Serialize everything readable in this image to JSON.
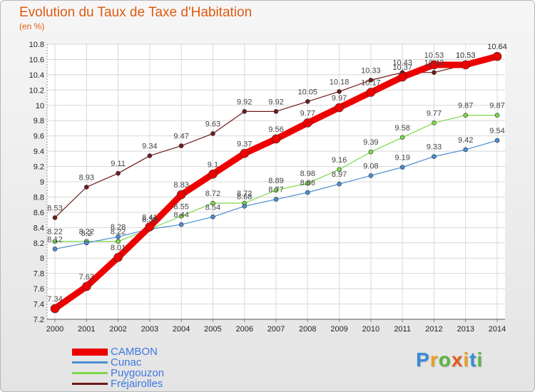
{
  "header": {
    "title": "Evolution du Taux de Taxe d'Habitation",
    "unit": "(en %)"
  },
  "chart_data": {
    "type": "line",
    "title": "Evolution du Taux de Taxe d'Habitation",
    "ylabel": "(en %)",
    "xlabel": "",
    "x": [
      "2000",
      "2001",
      "2002",
      "2003",
      "2004",
      "2005",
      "2006",
      "2007",
      "2008",
      "2009",
      "2010",
      "2011",
      "2012",
      "2013",
      "2014"
    ],
    "ylim": [
      7.2,
      10.8
    ],
    "yticks": [
      7.2,
      7.4,
      7.6,
      7.8,
      8,
      8.2,
      8.4,
      8.6,
      8.8,
      9,
      9.2,
      9.4,
      9.6,
      9.8,
      10,
      10.2,
      10.4,
      10.6,
      10.8
    ],
    "grid": true,
    "legend_position": "bottom-left",
    "series": [
      {
        "name": "CAMBON",
        "color": "#ee0000",
        "values": [
          7.34,
          7.63,
          8.01,
          8.41,
          8.83,
          9.1,
          9.37,
          9.56,
          9.77,
          9.97,
          10.17,
          10.37,
          10.53,
          10.53,
          10.64
        ]
      },
      {
        "name": "Cunac",
        "color": "#4a8ed0",
        "values": [
          8.12,
          8.2,
          8.28,
          8.38,
          8.44,
          8.54,
          8.68,
          8.77,
          8.86,
          8.97,
          9.08,
          9.19,
          9.33,
          9.42,
          9.54
        ]
      },
      {
        "name": "Puygouzon",
        "color": "#7cd84a",
        "values": [
          8.22,
          8.22,
          8.22,
          8.38,
          8.55,
          8.72,
          8.72,
          8.89,
          8.98,
          9.16,
          9.39,
          9.58,
          9.77,
          9.87,
          9.87
        ]
      },
      {
        "name": "Fréjairolles",
        "color": "#6e1a1a",
        "values": [
          8.53,
          8.93,
          9.11,
          9.34,
          9.47,
          9.63,
          9.92,
          9.92,
          10.05,
          10.18,
          10.33,
          10.43,
          10.43,
          10.53,
          10.64
        ]
      }
    ]
  },
  "logo": {
    "letters": [
      {
        "ch": "P",
        "color": "#3a8ad8"
      },
      {
        "ch": "r",
        "color": "#e8a020"
      },
      {
        "ch": "o",
        "color": "#5ab840"
      },
      {
        "ch": "x",
        "color": "#e85a20"
      },
      {
        "ch": "i",
        "color": "#e8a020"
      },
      {
        "ch": "t",
        "color": "#3a8ad8"
      },
      {
        "ch": "i",
        "color": "#5ab840"
      }
    ]
  }
}
